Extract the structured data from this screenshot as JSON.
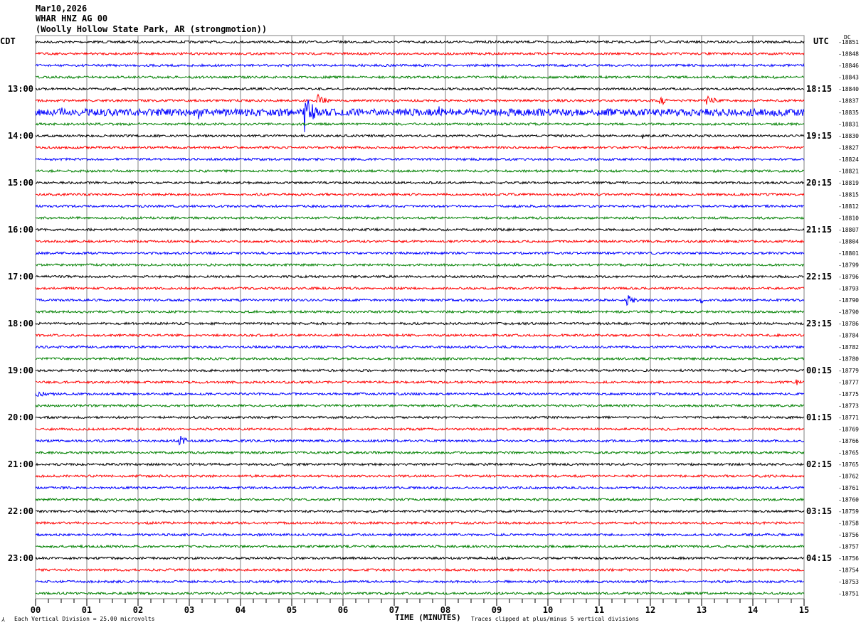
{
  "header": {
    "date": "Mar10,2026",
    "station": "WHAR HNZ AG 00",
    "location": "(Woolly Hollow State Park, AR (strongmotion))"
  },
  "footer": {
    "scale": "Each Vertical Division =   25.00 microvolts",
    "xlabel": "TIME (MINUTES)",
    "clip": "Traces clipped at plus/minus 5 vertical divisions"
  },
  "chart_data": {
    "type": "line",
    "title": "WHAR HNZ AG 00 helicorder",
    "xlabel": "TIME (MINUTES)",
    "xlim": [
      0,
      15
    ],
    "x_ticks": [
      "00",
      "01",
      "02",
      "03",
      "04",
      "05",
      "06",
      "07",
      "08",
      "09",
      "10",
      "11",
      "12",
      "13",
      "14",
      "15"
    ],
    "left_tz": "CDT",
    "right_tz": "UTC",
    "dc_label": "DC",
    "left_labels": [
      "13:00",
      "14:00",
      "15:00",
      "16:00",
      "17:00",
      "18:00",
      "19:00",
      "20:00",
      "21:00",
      "22:00",
      "23:00"
    ],
    "right_labels": [
      "18:15",
      "19:15",
      "20:15",
      "21:15",
      "22:15",
      "23:15",
      "00:15",
      "01:15",
      "02:15",
      "03:15",
      "04:15"
    ],
    "trace_colors": [
      "#000000",
      "#ff0000",
      "#0000ff",
      "#008000"
    ],
    "dc_offsets": [
      "-18851",
      "-18848",
      "-18846",
      "-18843",
      "-18840",
      "-18837",
      "-18835",
      "-18831",
      "-18830",
      "-18827",
      "-18824",
      "-18821",
      "-18819",
      "-18815",
      "-18812",
      "-18810",
      "-18807",
      "-18804",
      "-18801",
      "-18799",
      "-18796",
      "-18793",
      "-18790",
      "-18790",
      "-18786",
      "-18784",
      "-18782",
      "-18780",
      "-18779",
      "-18777",
      "-18775",
      "-18773",
      "-18771",
      "-18769",
      "-18766",
      "-18765",
      "-18765",
      "-18762",
      "-18761",
      "-18760",
      "-18759",
      "-18758",
      "-18756",
      "-18757",
      "-18756",
      "-18754",
      "-18753",
      "-18751"
    ],
    "events": [
      {
        "row": 5,
        "minute": 5.5,
        "amp": 10,
        "dur": 0.3
      },
      {
        "row": 5,
        "minute": 10.8,
        "amp": 4,
        "dur": 0.05
      },
      {
        "row": 5,
        "minute": 12.2,
        "amp": 7,
        "dur": 0.3
      },
      {
        "row": 5,
        "minute": 13.1,
        "amp": 10,
        "dur": 0.3
      },
      {
        "row": 6,
        "minute": 0.0,
        "amp": 5,
        "dur": 15
      },
      {
        "row": 6,
        "minute": 0.45,
        "amp": 10,
        "dur": 0.3
      },
      {
        "row": 6,
        "minute": 2.45,
        "amp": 9,
        "dur": 0.2
      },
      {
        "row": 6,
        "minute": 3.2,
        "amp": 8,
        "dur": 0.2
      },
      {
        "row": 6,
        "minute": 5.25,
        "amp": 30,
        "dur": 0.3
      },
      {
        "row": 6,
        "minute": 7.05,
        "amp": 5,
        "dur": 0.2
      },
      {
        "row": 6,
        "minute": 7.85,
        "amp": 12,
        "dur": 0.2
      },
      {
        "row": 8,
        "minute": 11.85,
        "amp": 4,
        "dur": 0.3
      },
      {
        "row": 22,
        "minute": 11.55,
        "amp": 8,
        "dur": 0.3
      },
      {
        "row": 22,
        "minute": 13.0,
        "amp": 5,
        "dur": 0.1
      },
      {
        "row": 29,
        "minute": 14.85,
        "amp": 5,
        "dur": 0.15
      },
      {
        "row": 30,
        "minute": 0.0,
        "amp": 4,
        "dur": 1.0
      },
      {
        "row": 34,
        "minute": 2.8,
        "amp": 10,
        "dur": 0.3
      }
    ]
  }
}
